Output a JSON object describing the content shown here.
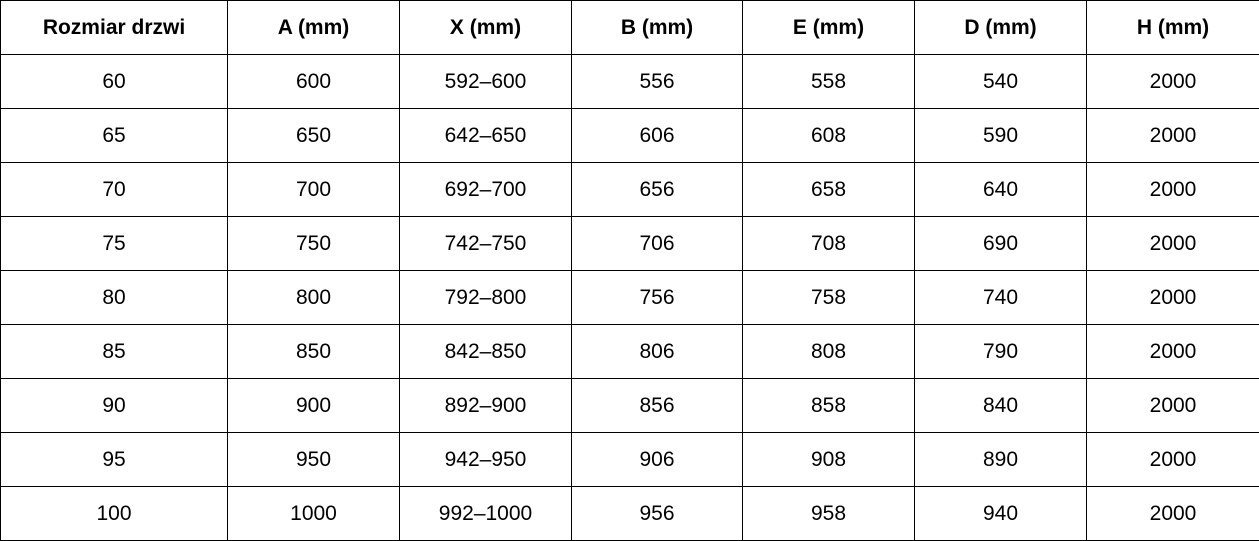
{
  "table": {
    "headers": [
      "Rozmiar drzwi",
      "A (mm)",
      "X (mm)",
      "B (mm)",
      "E (mm)",
      "D (mm)",
      "H (mm)"
    ],
    "rows": [
      [
        "60",
        "600",
        "592–600",
        "556",
        "558",
        "540",
        "2000"
      ],
      [
        "65",
        "650",
        "642–650",
        "606",
        "608",
        "590",
        "2000"
      ],
      [
        "70",
        "700",
        "692–700",
        "656",
        "658",
        "640",
        "2000"
      ],
      [
        "75",
        "750",
        "742–750",
        "706",
        "708",
        "690",
        "2000"
      ],
      [
        "80",
        "800",
        "792–800",
        "756",
        "758",
        "740",
        "2000"
      ],
      [
        "85",
        "850",
        "842–850",
        "806",
        "808",
        "790",
        "2000"
      ],
      [
        "90",
        "900",
        "892–900",
        "856",
        "858",
        "840",
        "2000"
      ],
      [
        "95",
        "950",
        "942–950",
        "906",
        "908",
        "890",
        "2000"
      ],
      [
        "100",
        "1000",
        "992–1000",
        "956",
        "958",
        "940",
        "2000"
      ]
    ]
  }
}
